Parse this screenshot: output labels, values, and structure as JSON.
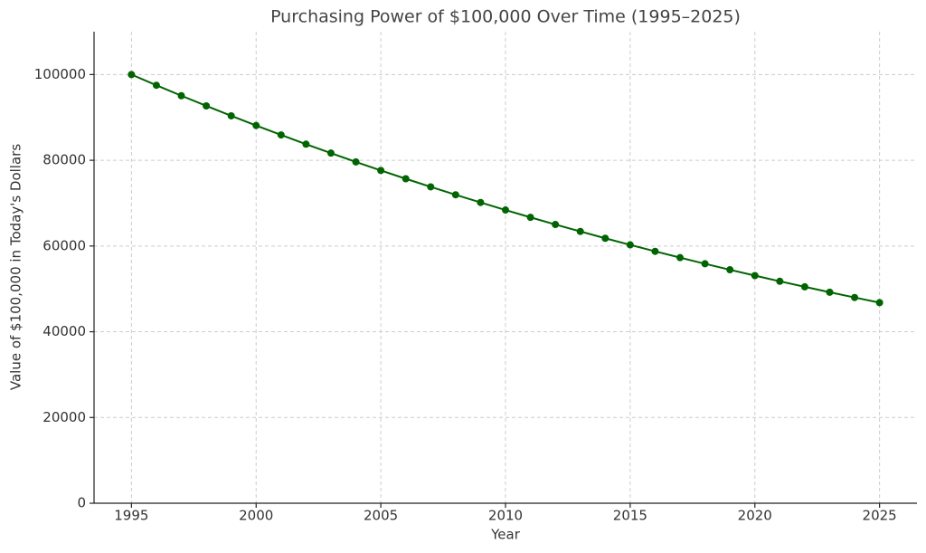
{
  "chart_data": {
    "type": "line",
    "title": "Purchasing Power of $100,000 Over Time (1995–2025)",
    "x_label": "Year",
    "y_label": "Value of $100,000 in Today's Dollars",
    "x": [
      1995,
      1996,
      1997,
      1998,
      1999,
      2000,
      2001,
      2002,
      2003,
      2004,
      2005,
      2006,
      2007,
      2008,
      2009,
      2010,
      2011,
      2012,
      2013,
      2014,
      2015,
      2016,
      2017,
      2018,
      2019,
      2020,
      2021,
      2022,
      2023,
      2024,
      2025
    ],
    "series": [
      {
        "name": "Value",
        "color": "#006400",
        "values": [
          100000,
          97500,
          95060,
          92690,
          90370,
          88110,
          85910,
          83760,
          81670,
          79620,
          77630,
          75690,
          73800,
          71950,
          70160,
          68400,
          66690,
          65020,
          63400,
          61810,
          60270,
          58760,
          57290,
          55860,
          54460,
          53100,
          51770,
          50480,
          49220,
          47990,
          46790
        ]
      }
    ],
    "xlim": [
      1993.5,
      2026.5
    ],
    "xticks": [
      1995,
      2000,
      2005,
      2010,
      2015,
      2020,
      2025
    ],
    "ylim": [
      0,
      110000
    ],
    "yticks": [
      0,
      20000,
      40000,
      60000,
      80000,
      100000
    ],
    "grid": true
  }
}
